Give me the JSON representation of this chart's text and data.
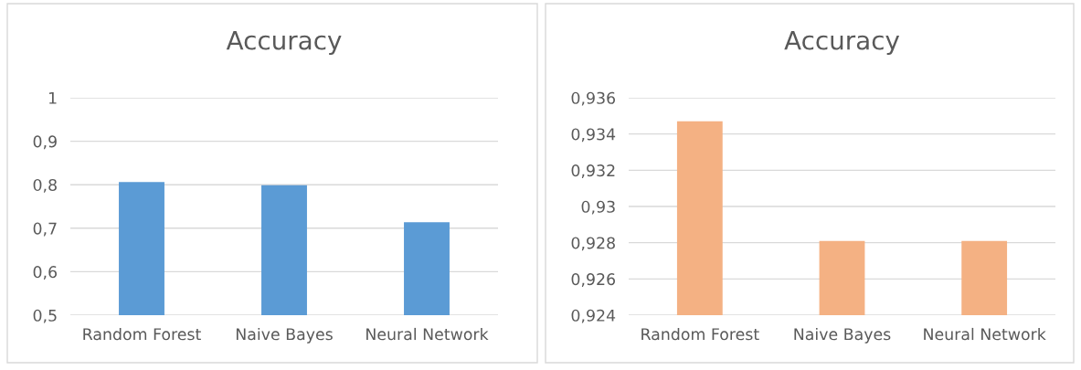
{
  "chart_data": [
    {
      "type": "bar",
      "title": "Accuracy",
      "categories": [
        "Random Forest",
        "Naive Bayes",
        "Neural Network"
      ],
      "values": [
        0.806,
        0.799,
        0.714
      ],
      "color": "#5b9bd5",
      "ylim": [
        0.5,
        1
      ],
      "yticks": [
        {
          "value": 0.5,
          "label": "0,5"
        },
        {
          "value": 0.6,
          "label": "0,6"
        },
        {
          "value": 0.7,
          "label": "0,7"
        },
        {
          "value": 0.8,
          "label": "0,8"
        },
        {
          "value": 0.9,
          "label": "0,9"
        },
        {
          "value": 1,
          "label": "1"
        }
      ],
      "grid": "y"
    },
    {
      "type": "bar",
      "title": "Accuracy",
      "categories": [
        "Random Forest",
        "Naive Bayes",
        "Neural Network"
      ],
      "values": [
        0.9347,
        0.9281,
        0.9281
      ],
      "color": "#f4b183",
      "ylim": [
        0.924,
        0.936
      ],
      "yticks": [
        {
          "value": 0.924,
          "label": "0,924"
        },
        {
          "value": 0.926,
          "label": "0,926"
        },
        {
          "value": 0.928,
          "label": "0,928"
        },
        {
          "value": 0.93,
          "label": "0,93"
        },
        {
          "value": 0.932,
          "label": "0,932"
        },
        {
          "value": 0.934,
          "label": "0,934"
        },
        {
          "value": 0.936,
          "label": "0,936"
        }
      ],
      "grid": "y"
    }
  ]
}
